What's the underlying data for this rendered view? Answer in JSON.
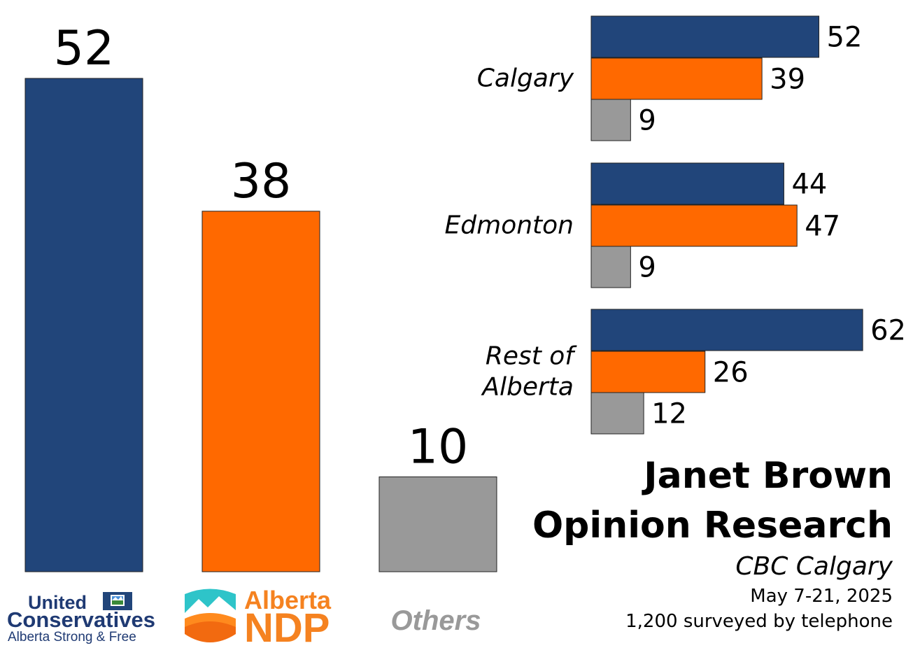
{
  "colors": {
    "ucp": "#21457a",
    "ndp": "#ff6900",
    "others": "#999999"
  },
  "chart_data": [
    {
      "type": "bar",
      "title": "",
      "categories": [
        "United Conservatives",
        "Alberta NDP",
        "Others"
      ],
      "values": [
        52,
        38,
        10
      ],
      "ylim": [
        0,
        52
      ],
      "xlabel": "",
      "ylabel": "",
      "grid": false
    },
    {
      "type": "bar",
      "orientation": "horizontal",
      "categories": [
        "Calgary",
        "Edmonton",
        "Rest of Alberta"
      ],
      "category_lines": [
        [
          "Calgary"
        ],
        [
          "Edmonton"
        ],
        [
          "Rest of",
          "Alberta"
        ]
      ],
      "series": [
        {
          "name": "United Conservatives",
          "values": [
            52,
            44,
            62
          ]
        },
        {
          "name": "Alberta NDP",
          "values": [
            39,
            47,
            26
          ]
        },
        {
          "name": "Others",
          "values": [
            9,
            9,
            12
          ]
        }
      ],
      "xlim": [
        0,
        62
      ],
      "grid": false
    }
  ],
  "logos": {
    "ucp": {
      "line1": "United",
      "line2": "Conservatives",
      "tagline": "Alberta Strong & Free"
    },
    "ndp": {
      "line1": "Alberta",
      "line2": "NDP"
    },
    "others": "Others"
  },
  "source": {
    "title_line1": "Janet Brown",
    "title_line2": "Opinion Research",
    "outlet": "CBC Calgary",
    "dates": "May 7-21, 2025",
    "sample": "1,200 surveyed by telephone"
  }
}
